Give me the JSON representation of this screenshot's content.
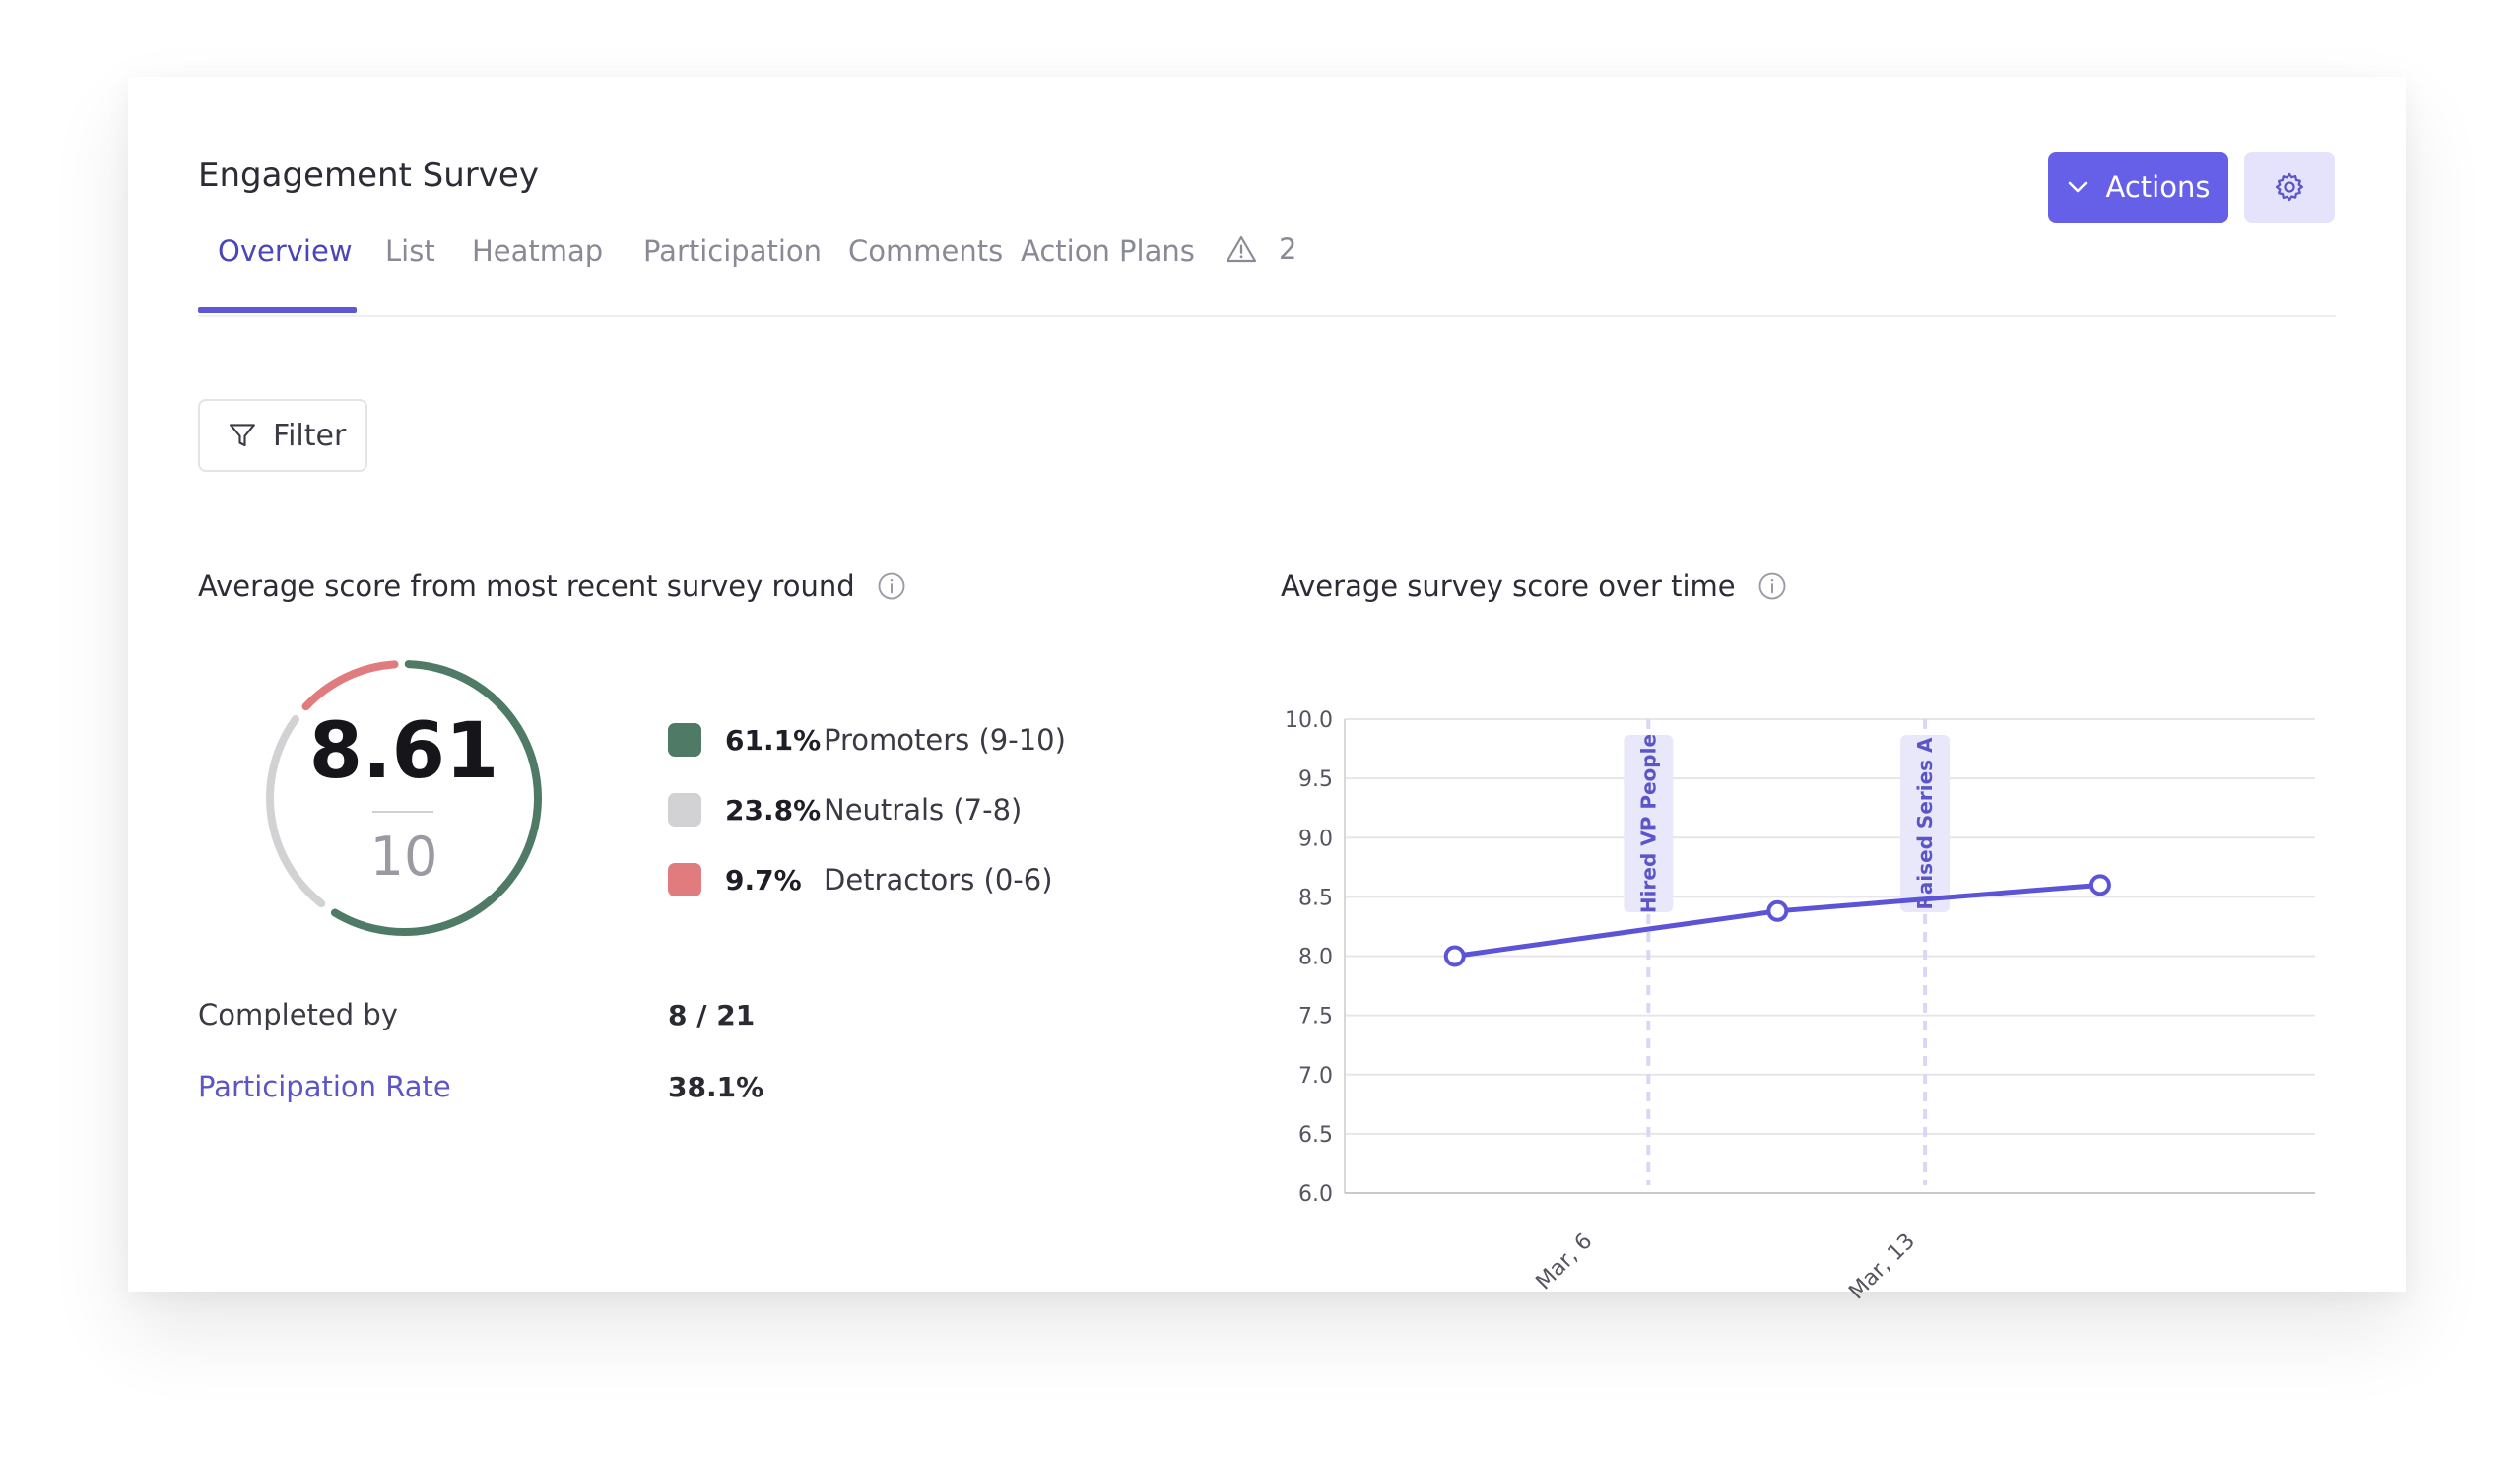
{
  "header": {
    "title": "Engagement Survey",
    "actions_label": "Actions",
    "actions_icon": "chevron-down-icon",
    "settings_icon": "gear-icon"
  },
  "tabs": [
    {
      "label": "Overview",
      "active": true
    },
    {
      "label": "List"
    },
    {
      "label": "Heatmap"
    },
    {
      "label": "Participation"
    },
    {
      "label": "Comments"
    },
    {
      "label": "Action Plans"
    }
  ],
  "warning_tab": {
    "icon": "warning-icon",
    "count": "2"
  },
  "filter": {
    "label": "Filter",
    "icon": "filter-icon"
  },
  "score_panel": {
    "title": "Average score from most recent survey round",
    "info_icon": "info-icon",
    "score": "8.61",
    "max": "10",
    "legend": [
      {
        "pct": "61.1%",
        "label": "Promoters (9-10)",
        "color": "#4f7a66"
      },
      {
        "pct": "23.8%",
        "label": "Neutrals (7-8)",
        "color": "#d2d2d4"
      },
      {
        "pct": "9.7%",
        "label": "Detractors (0-6)",
        "color": "#e07b7e"
      }
    ],
    "completed_label": "Completed by",
    "completed_value": "8 / 21",
    "participation_label": "Participation Rate",
    "participation_value": "38.1%"
  },
  "chart_panel": {
    "title": "Average survey score over time",
    "info_icon": "info-icon"
  },
  "colors": {
    "accent": "#6660e8",
    "line": "#5b54d6",
    "promoters": "#4f7a66",
    "neutrals": "#d2d2d4",
    "detractors": "#e07b7e"
  },
  "chart_data": {
    "type": "line",
    "title": "Average survey score over time",
    "xlabel": "",
    "ylabel": "",
    "ylim": [
      6.0,
      10.0
    ],
    "y_ticks": [
      "10.0",
      "9.5",
      "9.0",
      "8.5",
      "8.0",
      "7.5",
      "7.0",
      "6.5",
      "6.0"
    ],
    "x_ticks": [
      "Mar, 6",
      "Mar, 13"
    ],
    "grid": true,
    "points": [
      {
        "x": "Mar, 3",
        "y": 8.0
      },
      {
        "x": "Mar, 10",
        "y": 8.38
      },
      {
        "x": "Mar, 17",
        "y": 8.6
      }
    ],
    "annotations": [
      {
        "x": "Mar, 7.2",
        "label": "Hired VP People"
      },
      {
        "x": "Mar, 13.2",
        "label": "Raised Series A"
      }
    ]
  }
}
